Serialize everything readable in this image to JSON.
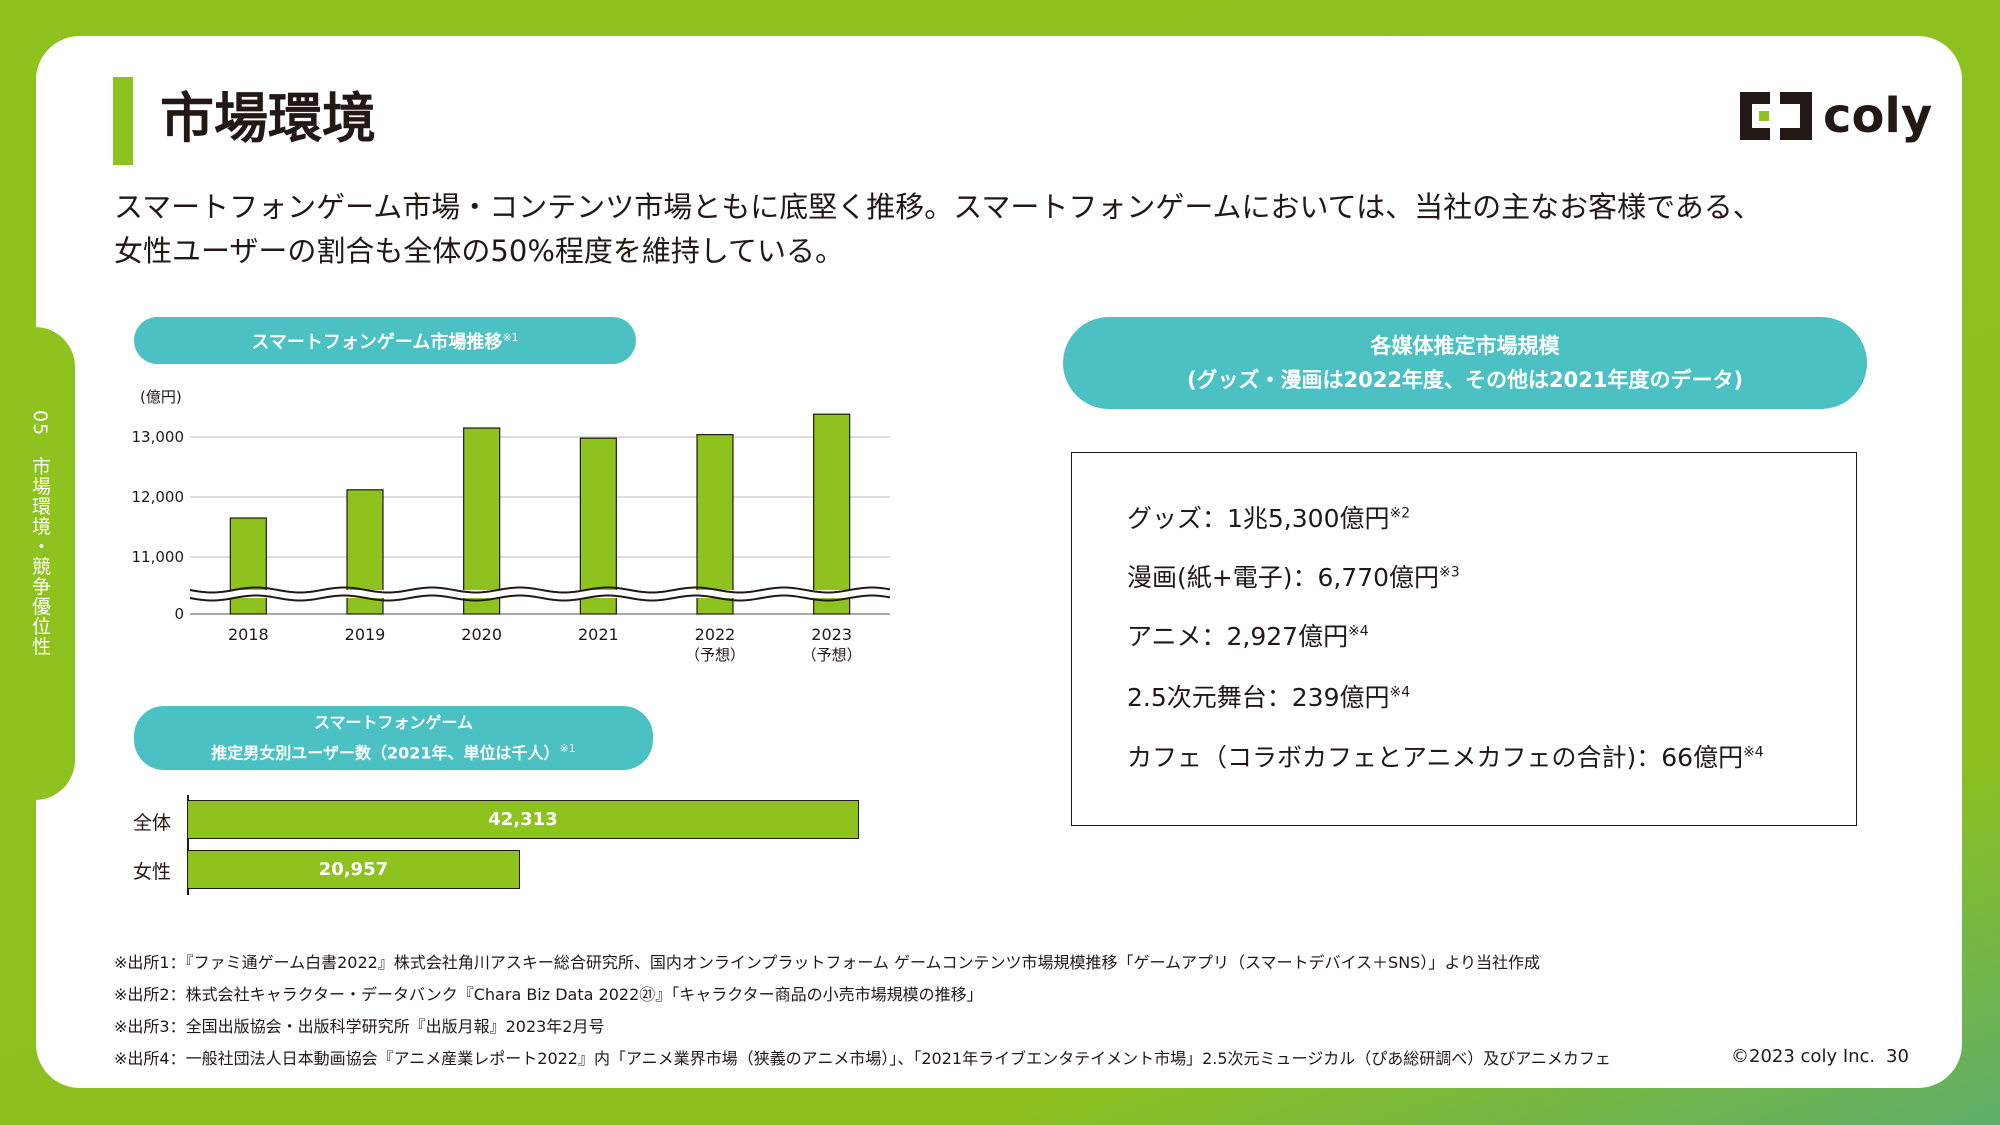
{
  "title": "市場環境",
  "side_label": "05　市場環境・競争優位性",
  "logo_text": "coly",
  "lead_lines": [
    "スマートフォンゲーム市場・コンテンツ市場ともに底堅く推移。スマートフォンゲームにおいては、当社の主なお客様である、",
    "女性ユーザーの割合も全体の50%程度を維持している。"
  ],
  "pill_market": {
    "label": "スマートフォンゲーム市場推移",
    "note": "※1"
  },
  "pill_users": {
    "line1": "スマートフォンゲーム",
    "line2": "推定男女別ユーザー数（2021年、単位は千人）",
    "note": "※1"
  },
  "pill_media": {
    "line1": "各媒体推定市場規模",
    "line2": "(グッズ・漫画は2022年度、その他は2021年度のデータ)"
  },
  "chart_data": [
    {
      "type": "bar",
      "unit_label": "(億円)",
      "categories": [
        "2018",
        "2019",
        "2020",
        "2021",
        "2022",
        "2023"
      ],
      "category_sublabels": [
        "",
        "",
        "",
        "",
        "（予想）",
        "（予想）"
      ],
      "values": [
        11650,
        12120,
        13150,
        12980,
        13040,
        13380
      ],
      "yticks": [
        "13,000",
        "12,000",
        "11,000",
        "0"
      ],
      "ylim": [
        10500,
        13500
      ],
      "axis_break": true,
      "color": "#8dc21f"
    },
    {
      "type": "bar",
      "orientation": "horizontal",
      "categories": [
        "全体",
        "女性"
      ],
      "values": [
        42313,
        20957
      ],
      "value_labels": [
        "42,313",
        "20,957"
      ],
      "color": "#8dc21f"
    }
  ],
  "media_items": [
    {
      "text": "グッズ：1兆5,300億円",
      "note": "※2"
    },
    {
      "text": "漫画(紙+電子)：6,770億円",
      "note": "※3"
    },
    {
      "text": "アニメ：2,927億円",
      "note": "※4"
    },
    {
      "text": "2.5次元舞台：239億円",
      "note": "※4"
    },
    {
      "text": "カフェ（コラボカフェとアニメカフェの合計)：66億円",
      "note": "※4"
    }
  ],
  "footnotes": [
    "※出所1：『ファミ通ゲーム白書2022』株式会社角川アスキー総合研究所、国内オンラインプラットフォーム ゲームコンテンツ市場規模推移「ゲームアプリ（スマートデバイス＋SNS）」より当社作成",
    "※出所2：株式会社キャラクター・データバンク『Chara Biz Data 2022㉑』「キャラクター商品の小売市場規模の推移」",
    "※出所3：全国出版協会・出版科学研究所『出版月報』2023年2月号",
    "※出所4：一般社団法人日本動画協会『アニメ産業レポート2022』内「アニメ業界市場（狭義のアニメ市場）」、「2021年ライブエンタテイメント市場」2.5次元ミュージカル（ぴあ総研調べ）及びアニメカフェ"
  ],
  "copyright": "©2023 coly Inc.",
  "page_number": "30",
  "colors": {
    "brand_green": "#8dc21f",
    "teal": "#4cc1c3",
    "text": "#231815"
  }
}
